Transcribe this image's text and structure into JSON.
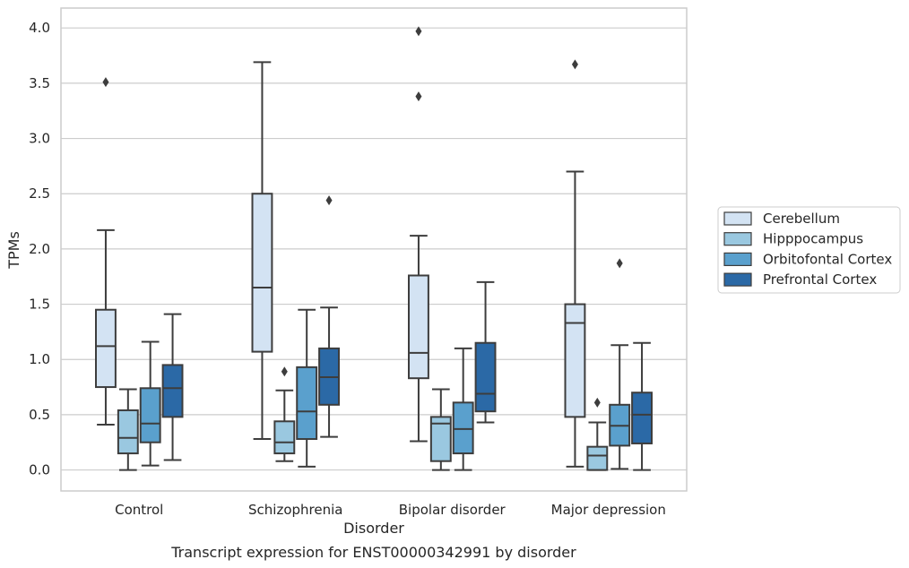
{
  "chart_data": {
    "type": "box",
    "xlabel": "Disorder",
    "ylabel": "TPMs",
    "caption": "Transcript expression for ENST00000342991 by disorder",
    "ylim": [
      -0.19,
      4.18
    ],
    "yticks": [
      "0.0",
      "0.5",
      "1.0",
      "1.5",
      "2.0",
      "2.5",
      "3.0",
      "3.5",
      "4.0"
    ],
    "grid": "horizontal",
    "legend_position": "right",
    "categories": [
      "Control",
      "Schizophrenia",
      "Bipolar disorder",
      "Major depression"
    ],
    "series": [
      {
        "name": "Cerebellum",
        "color": "#d3e3f3",
        "boxes": [
          {
            "whisker_low": 0.41,
            "q1": 0.75,
            "median": 1.12,
            "q3": 1.45,
            "whisker_high": 2.17,
            "outliers": [
              3.51
            ]
          },
          {
            "whisker_low": 0.28,
            "q1": 1.07,
            "median": 1.65,
            "q3": 2.5,
            "whisker_high": 3.69,
            "outliers": []
          },
          {
            "whisker_low": 0.26,
            "q1": 0.83,
            "median": 1.06,
            "q3": 1.76,
            "whisker_high": 2.12,
            "outliers": [
              3.38,
              3.97
            ]
          },
          {
            "whisker_low": 0.03,
            "q1": 0.48,
            "median": 1.33,
            "q3": 1.5,
            "whisker_high": 2.7,
            "outliers": [
              3.67
            ]
          }
        ]
      },
      {
        "name": "Hipppocampus",
        "color": "#9ac8e0",
        "boxes": [
          {
            "whisker_low": 0.0,
            "q1": 0.15,
            "median": 0.29,
            "q3": 0.54,
            "whisker_high": 0.73,
            "outliers": []
          },
          {
            "whisker_low": 0.08,
            "q1": 0.15,
            "median": 0.25,
            "q3": 0.44,
            "whisker_high": 0.72,
            "outliers": [
              0.89
            ]
          },
          {
            "whisker_low": 0.0,
            "q1": 0.08,
            "median": 0.42,
            "q3": 0.48,
            "whisker_high": 0.73,
            "outliers": []
          },
          {
            "whisker_low": 0.0,
            "q1": 0.0,
            "median": 0.13,
            "q3": 0.21,
            "whisker_high": 0.43,
            "outliers": [
              0.61
            ]
          }
        ]
      },
      {
        "name": "Orbitofontal Cortex",
        "color": "#5aa0cd",
        "boxes": [
          {
            "whisker_low": 0.04,
            "q1": 0.25,
            "median": 0.42,
            "q3": 0.74,
            "whisker_high": 1.16,
            "outliers": []
          },
          {
            "whisker_low": 0.03,
            "q1": 0.28,
            "median": 0.53,
            "q3": 0.93,
            "whisker_high": 1.45,
            "outliers": []
          },
          {
            "whisker_low": 0.0,
            "q1": 0.15,
            "median": 0.37,
            "q3": 0.61,
            "whisker_high": 1.1,
            "outliers": []
          },
          {
            "whisker_low": 0.01,
            "q1": 0.22,
            "median": 0.4,
            "q3": 0.59,
            "whisker_high": 1.13,
            "outliers": [
              1.87
            ]
          }
        ]
      },
      {
        "name": "Prefrontal Cortex",
        "color": "#2b69a6",
        "boxes": [
          {
            "whisker_low": 0.09,
            "q1": 0.48,
            "median": 0.74,
            "q3": 0.95,
            "whisker_high": 1.41,
            "outliers": []
          },
          {
            "whisker_low": 0.3,
            "q1": 0.59,
            "median": 0.84,
            "q3": 1.1,
            "whisker_high": 1.47,
            "outliers": [
              2.44
            ]
          },
          {
            "whisker_low": 0.43,
            "q1": 0.53,
            "median": 0.69,
            "q3": 1.15,
            "whisker_high": 1.7,
            "outliers": []
          },
          {
            "whisker_low": 0.0,
            "q1": 0.24,
            "median": 0.5,
            "q3": 0.7,
            "whisker_high": 1.15,
            "outliers": []
          }
        ]
      }
    ]
  }
}
